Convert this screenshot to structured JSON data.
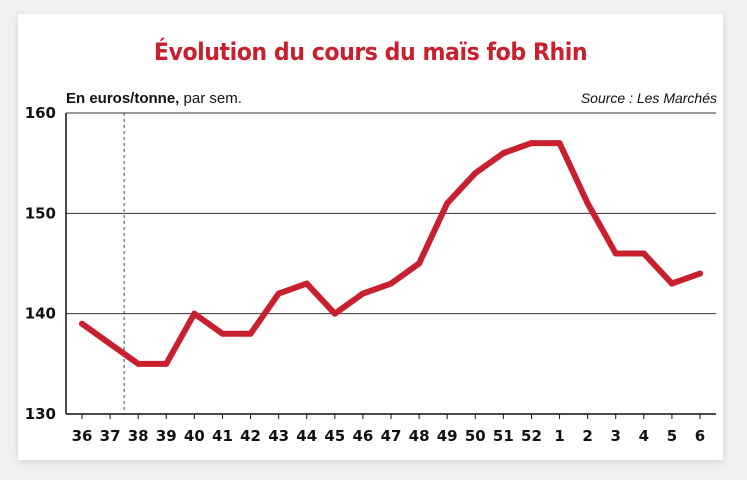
{
  "chart_data": {
    "type": "line",
    "title": "Évolution du cours du maïs fob Rhin",
    "subtitle_bold": "En euros/tonne,",
    "subtitle_rest": " par sem.",
    "source": "Source : Les Marchés",
    "categories": [
      "36",
      "37",
      "38",
      "39",
      "40",
      "41",
      "42",
      "43",
      "44",
      "45",
      "46",
      "47",
      "48",
      "49",
      "50",
      "51",
      "52",
      "1",
      "2",
      "3",
      "4",
      "5",
      "6"
    ],
    "values": [
      139,
      137,
      135,
      135,
      140,
      138,
      138,
      142,
      143,
      140,
      142,
      143,
      145,
      151,
      154,
      156,
      157,
      157,
      151,
      146,
      146,
      143,
      144
    ],
    "ylim": [
      130,
      160
    ],
    "yticks": [
      "130",
      "140",
      "150",
      "160"
    ],
    "grid": true,
    "marker_after_category": "37",
    "line_color": "#c8202f"
  }
}
